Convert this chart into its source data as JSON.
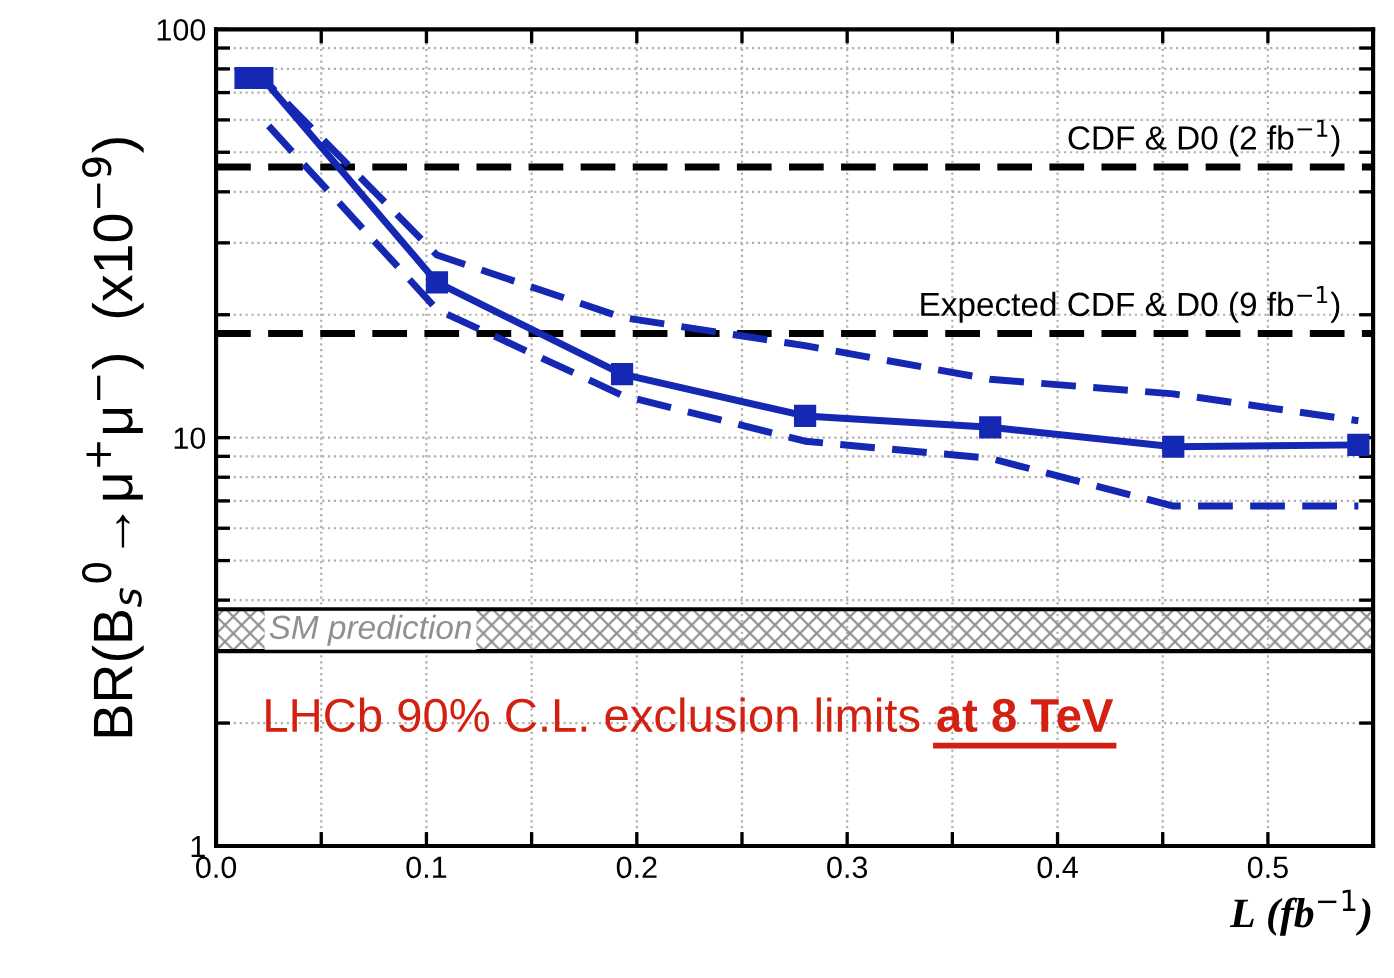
{
  "chart_data": {
    "type": "line",
    "xlabel": "L (fb$^{−1}$)",
    "ylabel": "BR(B$_{s}$$^{0}$→μ$^{+}$μ$^{−}$)  (x10$^{−9}$)",
    "log": "y",
    "xlim": [
      0.0,
      0.55
    ],
    "xticks": [
      {
        "value": 0.0,
        "label": "0.0"
      },
      {
        "value": 0.05,
        "label": null
      },
      0.1,
      {
        "value": 0.15,
        "label": null
      },
      0.2,
      {
        "value": 0.25,
        "label": null
      },
      0.3,
      {
        "value": 0.35,
        "label": null
      },
      0.4,
      {
        "value": 0.45,
        "label": null
      },
      0.5,
      {
        "value": 0.55,
        "label": null
      }
    ],
    "ylim": [
      1,
      100
    ],
    "yticks": [
      1,
      {
        "value": 2,
        "label": null
      },
      {
        "value": 3,
        "label": null
      },
      {
        "value": 4,
        "label": null
      },
      {
        "value": 5,
        "label": null
      },
      {
        "value": 6,
        "label": null
      },
      {
        "value": 7,
        "label": null
      },
      {
        "value": 8,
        "label": null
      },
      {
        "value": 9,
        "label": null
      },
      10,
      {
        "value": 20,
        "label": null
      },
      {
        "value": 30,
        "label": null
      },
      {
        "value": 40,
        "label": null
      },
      {
        "value": 50,
        "label": null
      },
      {
        "value": 60,
        "label": null
      },
      {
        "value": 70,
        "label": null
      },
      {
        "value": 80,
        "label": null
      },
      {
        "value": 90,
        "label": null
      },
      100
    ],
    "grid": true,
    "series": [
      {
        "color": "#1428b4",
        "line_style": "dashed",
        "marker": "none",
        "x": [
          0.014,
          0.022,
          0.105,
          0.193,
          0.28,
          0.368,
          0.455,
          0.543
        ],
        "values": [
          76,
          76,
          28,
          19.7,
          16.8,
          13.9,
          12.8,
          11.0
        ]
      },
      {
        "color": "#1428b4",
        "line_style": "solid",
        "marker": "square",
        "x": [
          0.014,
          0.022,
          0.105,
          0.193,
          0.28,
          0.368,
          0.455,
          0.543
        ],
        "values": [
          76,
          76,
          24,
          14.3,
          11.3,
          10.6,
          9.5,
          9.6
        ]
      },
      {
        "color": "#1428b4",
        "line_style": "dashed",
        "marker": "none",
        "x": [
          0.025,
          0.105,
          0.193,
          0.28,
          0.368,
          0.455,
          0.543
        ],
        "values": [
          58,
          20.6,
          12.7,
          9.8,
          8.9,
          6.8,
          6.8
        ]
      }
    ],
    "ref_lines": [
      {
        "axis": "y",
        "value": 46,
        "label": "CDF & D0 (2 fb$^{−1}$)",
        "color": "#000000",
        "line_style": "dashed"
      },
      {
        "axis": "y",
        "value": 18,
        "label": "Expected CDF & D0 (9 fb$^{−1}$)",
        "color": "#000000",
        "line_style": "dashed"
      }
    ],
    "bands": [
      {
        "axis": "y",
        "from": 3.0,
        "to": 3.8,
        "label": "SM prediction",
        "color": "#909090"
      }
    ],
    "annotations": [
      "LHCb 90% C.L. exclusion limits ",
      "at 8 TeV"
    ]
  }
}
